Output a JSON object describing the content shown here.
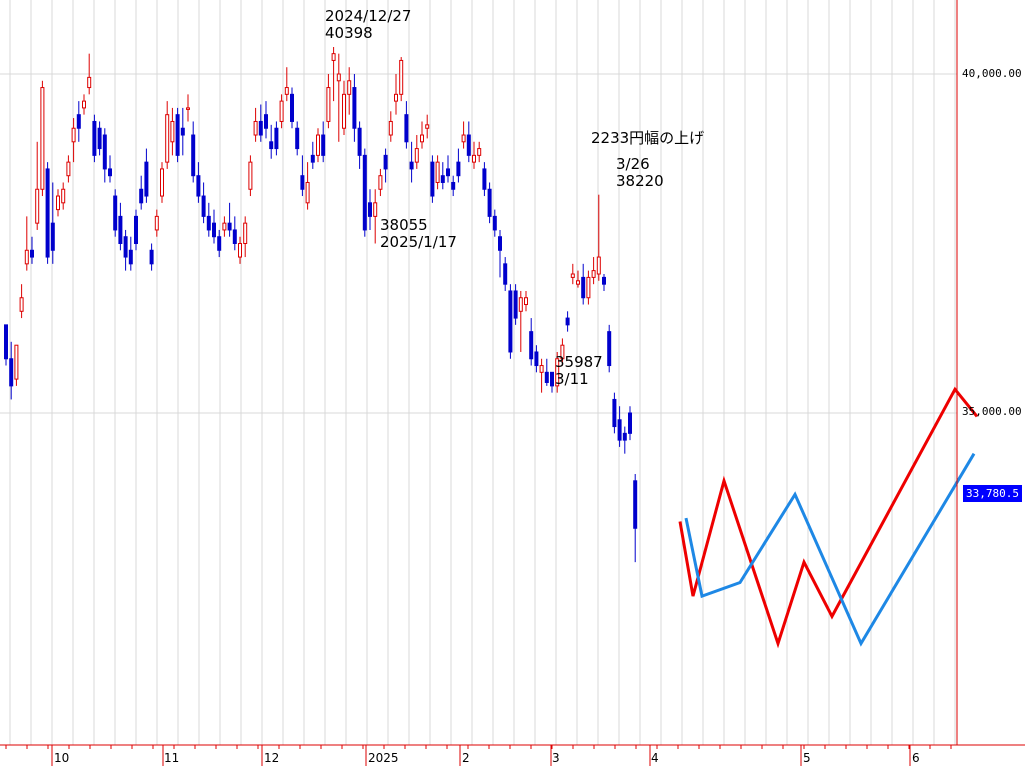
{
  "chart_data": {
    "type": "candlestick",
    "colors": {
      "up": "#dd0000",
      "down": "#0000cc",
      "forecast_red": "#ee0000",
      "forecast_blue": "#1e88e5",
      "price_badge": "#0000ff",
      "axis": "#dd0000",
      "grid": "#d8d8d8"
    },
    "y_axis": {
      "ticks": [
        40000,
        35000
      ],
      "tick_labels": [
        "40,000.00",
        "35,000.00"
      ],
      "ylim": [
        30200,
        41100
      ]
    },
    "x_axis": {
      "month_labels": [
        "10",
        "11",
        "12",
        "2025",
        "2",
        "3",
        "4",
        "5",
        "6"
      ]
    },
    "current_price_label": "33,780.5",
    "annotations": [
      {
        "lines": [
          "2024/12/27",
          "40398"
        ]
      },
      {
        "lines": [
          "38055",
          "2025/1/17"
        ]
      },
      {
        "lines": [
          "2233円幅の上げ"
        ]
      },
      {
        "lines": [
          "3/26",
          "38220"
        ]
      },
      {
        "lines": [
          "35987",
          "3/11"
        ]
      }
    ],
    "candles": [
      {
        "o": 36300,
        "h": 36300,
        "c": 35800,
        "l": 35700
      },
      {
        "o": 35800,
        "h": 36050,
        "c": 35400,
        "l": 35200
      },
      {
        "o": 35500,
        "h": 36000,
        "c": 36000,
        "l": 35400
      },
      {
        "o": 36500,
        "h": 36900,
        "c": 36700,
        "l": 36400
      },
      {
        "o": 37200,
        "h": 37900,
        "c": 37400,
        "l": 37100
      },
      {
        "o": 37400,
        "h": 37600,
        "c": 37300,
        "l": 37200
      },
      {
        "o": 37800,
        "h": 39000,
        "c": 38300,
        "l": 37700
      },
      {
        "o": 38300,
        "h": 39900,
        "c": 39800,
        "l": 38200
      },
      {
        "o": 38600,
        "h": 38700,
        "c": 37300,
        "l": 37200
      },
      {
        "o": 37800,
        "h": 38400,
        "c": 37400,
        "l": 37200
      },
      {
        "o": 38000,
        "h": 38300,
        "c": 38200,
        "l": 37900
      },
      {
        "o": 38100,
        "h": 38400,
        "c": 38300,
        "l": 38000
      },
      {
        "o": 38500,
        "h": 38800,
        "c": 38700,
        "l": 38400
      },
      {
        "o": 39000,
        "h": 39350,
        "c": 39200,
        "l": 38700
      },
      {
        "o": 39400,
        "h": 39600,
        "c": 39200,
        "l": 39000
      },
      {
        "o": 39500,
        "h": 39700,
        "c": 39600,
        "l": 39400
      },
      {
        "o": 39800,
        "h": 40300,
        "c": 39950,
        "l": 39700
      },
      {
        "o": 39300,
        "h": 39400,
        "c": 38800,
        "l": 38700
      },
      {
        "o": 39200,
        "h": 39300,
        "c": 38900,
        "l": 38800
      },
      {
        "o": 39100,
        "h": 39200,
        "c": 38600,
        "l": 38400
      },
      {
        "o": 38600,
        "h": 38800,
        "c": 38500,
        "l": 38400
      },
      {
        "o": 38200,
        "h": 38300,
        "c": 37700,
        "l": 37600
      },
      {
        "o": 37900,
        "h": 38100,
        "c": 37500,
        "l": 37400
      },
      {
        "o": 37600,
        "h": 37700,
        "c": 37300,
        "l": 37100
      },
      {
        "o": 37400,
        "h": 37600,
        "c": 37200,
        "l": 37100
      },
      {
        "o": 37900,
        "h": 38000,
        "c": 37500,
        "l": 37400
      },
      {
        "o": 38300,
        "h": 38500,
        "c": 38100,
        "l": 38000
      },
      {
        "o": 38700,
        "h": 38900,
        "c": 38200,
        "l": 38100
      },
      {
        "o": 37400,
        "h": 37500,
        "c": 37200,
        "l": 37100
      },
      {
        "o": 37700,
        "h": 38000,
        "c": 37900,
        "l": 37600
      },
      {
        "o": 38200,
        "h": 38700,
        "c": 38600,
        "l": 38100
      },
      {
        "o": 38700,
        "h": 39600,
        "c": 39400,
        "l": 38600
      },
      {
        "o": 39000,
        "h": 39500,
        "c": 39300,
        "l": 38800
      },
      {
        "o": 39400,
        "h": 39500,
        "c": 38800,
        "l": 38700
      },
      {
        "o": 39200,
        "h": 39500,
        "c": 39100,
        "l": 38800
      },
      {
        "o": 39500,
        "h": 39700,
        "c": 39500,
        "l": 39300
      },
      {
        "o": 39100,
        "h": 39300,
        "c": 38500,
        "l": 38400
      },
      {
        "o": 38500,
        "h": 38700,
        "c": 38200,
        "l": 38100
      },
      {
        "o": 38200,
        "h": 38400,
        "c": 37900,
        "l": 37800
      },
      {
        "o": 37900,
        "h": 38100,
        "c": 37700,
        "l": 37600
      },
      {
        "o": 37800,
        "h": 38000,
        "c": 37600,
        "l": 37500
      },
      {
        "o": 37600,
        "h": 37700,
        "c": 37400,
        "l": 37300
      },
      {
        "o": 37700,
        "h": 37900,
        "c": 37800,
        "l": 37600
      },
      {
        "o": 37800,
        "h": 38100,
        "c": 37700,
        "l": 37600
      },
      {
        "o": 37700,
        "h": 37900,
        "c": 37500,
        "l": 37400
      },
      {
        "o": 37300,
        "h": 37600,
        "c": 37500,
        "l": 37200
      },
      {
        "o": 37500,
        "h": 37900,
        "c": 37800,
        "l": 37300
      },
      {
        "o": 38300,
        "h": 38800,
        "c": 38700,
        "l": 38200
      },
      {
        "o": 39100,
        "h": 39500,
        "c": 39300,
        "l": 39000
      },
      {
        "o": 39300,
        "h": 39550,
        "c": 39100,
        "l": 39000
      },
      {
        "o": 39400,
        "h": 39600,
        "c": 39200,
        "l": 39050
      },
      {
        "o": 39000,
        "h": 39250,
        "c": 38900,
        "l": 38750
      },
      {
        "o": 39200,
        "h": 39300,
        "c": 38900,
        "l": 38800
      },
      {
        "o": 39300,
        "h": 39700,
        "c": 39600,
        "l": 39200
      },
      {
        "o": 39700,
        "h": 40100,
        "c": 39800,
        "l": 39600
      },
      {
        "o": 39700,
        "h": 39800,
        "c": 39300,
        "l": 39200
      },
      {
        "o": 39200,
        "h": 39300,
        "c": 38900,
        "l": 38800
      },
      {
        "o": 38500,
        "h": 38800,
        "c": 38300,
        "l": 38200
      },
      {
        "o": 38100,
        "h": 38700,
        "c": 38400,
        "l": 38000
      },
      {
        "o": 38800,
        "h": 39000,
        "c": 38700,
        "l": 38600
      },
      {
        "o": 38800,
        "h": 39200,
        "c": 39100,
        "l": 38700
      },
      {
        "o": 39100,
        "h": 39300,
        "c": 38800,
        "l": 38700
      },
      {
        "o": 39300,
        "h": 40000,
        "c": 39800,
        "l": 39200
      },
      {
        "o": 40200,
        "h": 40398,
        "c": 40300,
        "l": 39600
      },
      {
        "o": 39900,
        "h": 40300,
        "c": 40000,
        "l": 39000
      },
      {
        "o": 39200,
        "h": 39900,
        "c": 39700,
        "l": 39100
      },
      {
        "o": 39700,
        "h": 40100,
        "c": 39900,
        "l": 39400
      },
      {
        "o": 39800,
        "h": 40000,
        "c": 39200,
        "l": 39000
      },
      {
        "o": 39200,
        "h": 39300,
        "c": 38800,
        "l": 38600
      },
      {
        "o": 38800,
        "h": 38900,
        "c": 37700,
        "l": 37600
      },
      {
        "o": 38100,
        "h": 38300,
        "c": 37900,
        "l": 37700
      },
      {
        "o": 37900,
        "h": 38300,
        "c": 38100,
        "l": 37500
      },
      {
        "o": 38300,
        "h": 38600,
        "c": 38500,
        "l": 38200
      },
      {
        "o": 38800,
        "h": 38900,
        "c": 38600,
        "l": 38400
      },
      {
        "o": 39100,
        "h": 39450,
        "c": 39300,
        "l": 39000
      },
      {
        "o": 39600,
        "h": 40000,
        "c": 39700,
        "l": 39400
      },
      {
        "o": 39700,
        "h": 40250,
        "c": 40200,
        "l": 39600
      },
      {
        "o": 39400,
        "h": 39600,
        "c": 39000,
        "l": 38900
      },
      {
        "o": 38700,
        "h": 39000,
        "c": 38600,
        "l": 38400
      },
      {
        "o": 38700,
        "h": 39100,
        "c": 38900,
        "l": 38600
      },
      {
        "o": 39000,
        "h": 39300,
        "c": 39100,
        "l": 38900
      },
      {
        "o": 39200,
        "h": 39400,
        "c": 39250,
        "l": 39050
      },
      {
        "o": 38700,
        "h": 38800,
        "c": 38200,
        "l": 38100
      },
      {
        "o": 38400,
        "h": 38800,
        "c": 38700,
        "l": 38300
      },
      {
        "o": 38500,
        "h": 38700,
        "c": 38400,
        "l": 38300
      },
      {
        "o": 38600,
        "h": 38800,
        "c": 38500,
        "l": 38400
      },
      {
        "o": 38400,
        "h": 38500,
        "c": 38300,
        "l": 38200
      },
      {
        "o": 38700,
        "h": 38900,
        "c": 38500,
        "l": 38400
      },
      {
        "o": 39000,
        "h": 39300,
        "c": 39100,
        "l": 38900
      },
      {
        "o": 39100,
        "h": 39300,
        "c": 38800,
        "l": 38700
      },
      {
        "o": 38700,
        "h": 39000,
        "c": 38800,
        "l": 38600
      },
      {
        "o": 38800,
        "h": 39000,
        "c": 38900,
        "l": 38700
      },
      {
        "o": 38600,
        "h": 38700,
        "c": 38300,
        "l": 38200
      },
      {
        "o": 38300,
        "h": 38400,
        "c": 37900,
        "l": 37800
      },
      {
        "o": 37900,
        "h": 38000,
        "c": 37700,
        "l": 37600
      },
      {
        "o": 37600,
        "h": 37700,
        "c": 37400,
        "l": 37000
      },
      {
        "o": 37200,
        "h": 37300,
        "c": 36900,
        "l": 36800
      },
      {
        "o": 36800,
        "h": 36900,
        "c": 35900,
        "l": 35800
      },
      {
        "o": 36800,
        "h": 36900,
        "c": 36400,
        "l": 36300
      },
      {
        "o": 36500,
        "h": 36800,
        "c": 36700,
        "l": 35900
      },
      {
        "o": 36600,
        "h": 36800,
        "c": 36700,
        "l": 36500
      },
      {
        "o": 36200,
        "h": 36400,
        "c": 35800,
        "l": 35700
      },
      {
        "o": 35900,
        "h": 36000,
        "c": 35700,
        "l": 35600
      },
      {
        "o": 35600,
        "h": 35800,
        "c": 35700,
        "l": 35300
      },
      {
        "o": 35600,
        "h": 35800,
        "c": 35450,
        "l": 35400
      },
      {
        "o": 35600,
        "h": 35600,
        "c": 35400,
        "l": 35300
      },
      {
        "o": 35400,
        "h": 35900,
        "c": 35800,
        "l": 35300
      },
      {
        "o": 35800,
        "h": 36100,
        "c": 36000,
        "l": 35700
      },
      {
        "o": 36400,
        "h": 36500,
        "c": 36300,
        "l": 36200
      },
      {
        "o": 37000,
        "h": 37200,
        "c": 37050,
        "l": 36900
      },
      {
        "o": 36900,
        "h": 37100,
        "c": 36950,
        "l": 36850
      },
      {
        "o": 37000,
        "h": 37200,
        "c": 36700,
        "l": 36600
      },
      {
        "o": 36700,
        "h": 37100,
        "c": 37000,
        "l": 36600
      },
      {
        "o": 37000,
        "h": 37300,
        "c": 37100,
        "l": 36900
      },
      {
        "o": 37050,
        "h": 38220,
        "c": 37300,
        "l": 36950
      },
      {
        "o": 37000,
        "h": 37050,
        "c": 36900,
        "l": 36800
      },
      {
        "o": 36200,
        "h": 36300,
        "c": 35700,
        "l": 35600
      },
      {
        "o": 35200,
        "h": 35300,
        "c": 34800,
        "l": 34700
      },
      {
        "o": 34900,
        "h": 35100,
        "c": 34600,
        "l": 34500
      },
      {
        "o": 34700,
        "h": 34800,
        "c": 34600,
        "l": 34400
      },
      {
        "o": 35000,
        "h": 35100,
        "c": 34700,
        "l": 34600
      },
      {
        "o": 34000,
        "h": 34100,
        "c": 33300,
        "l": 32800
      }
    ],
    "forecast_series": [
      {
        "name": "",
        "color": "red",
        "points": [
          [
            0,
            33400
          ],
          [
            1,
            32300
          ],
          [
            2,
            34000
          ],
          [
            3,
            31600
          ],
          [
            4,
            32800
          ],
          [
            5,
            32000
          ],
          [
            6,
            35350
          ],
          [
            7,
            34950
          ]
        ]
      },
      {
        "name": "",
        "color": "blue",
        "points": [
          [
            0,
            33450
          ],
          [
            1,
            32300
          ],
          [
            2,
            32500
          ],
          [
            3,
            33800
          ],
          [
            4,
            31600
          ],
          [
            5,
            34400
          ]
        ]
      }
    ]
  }
}
